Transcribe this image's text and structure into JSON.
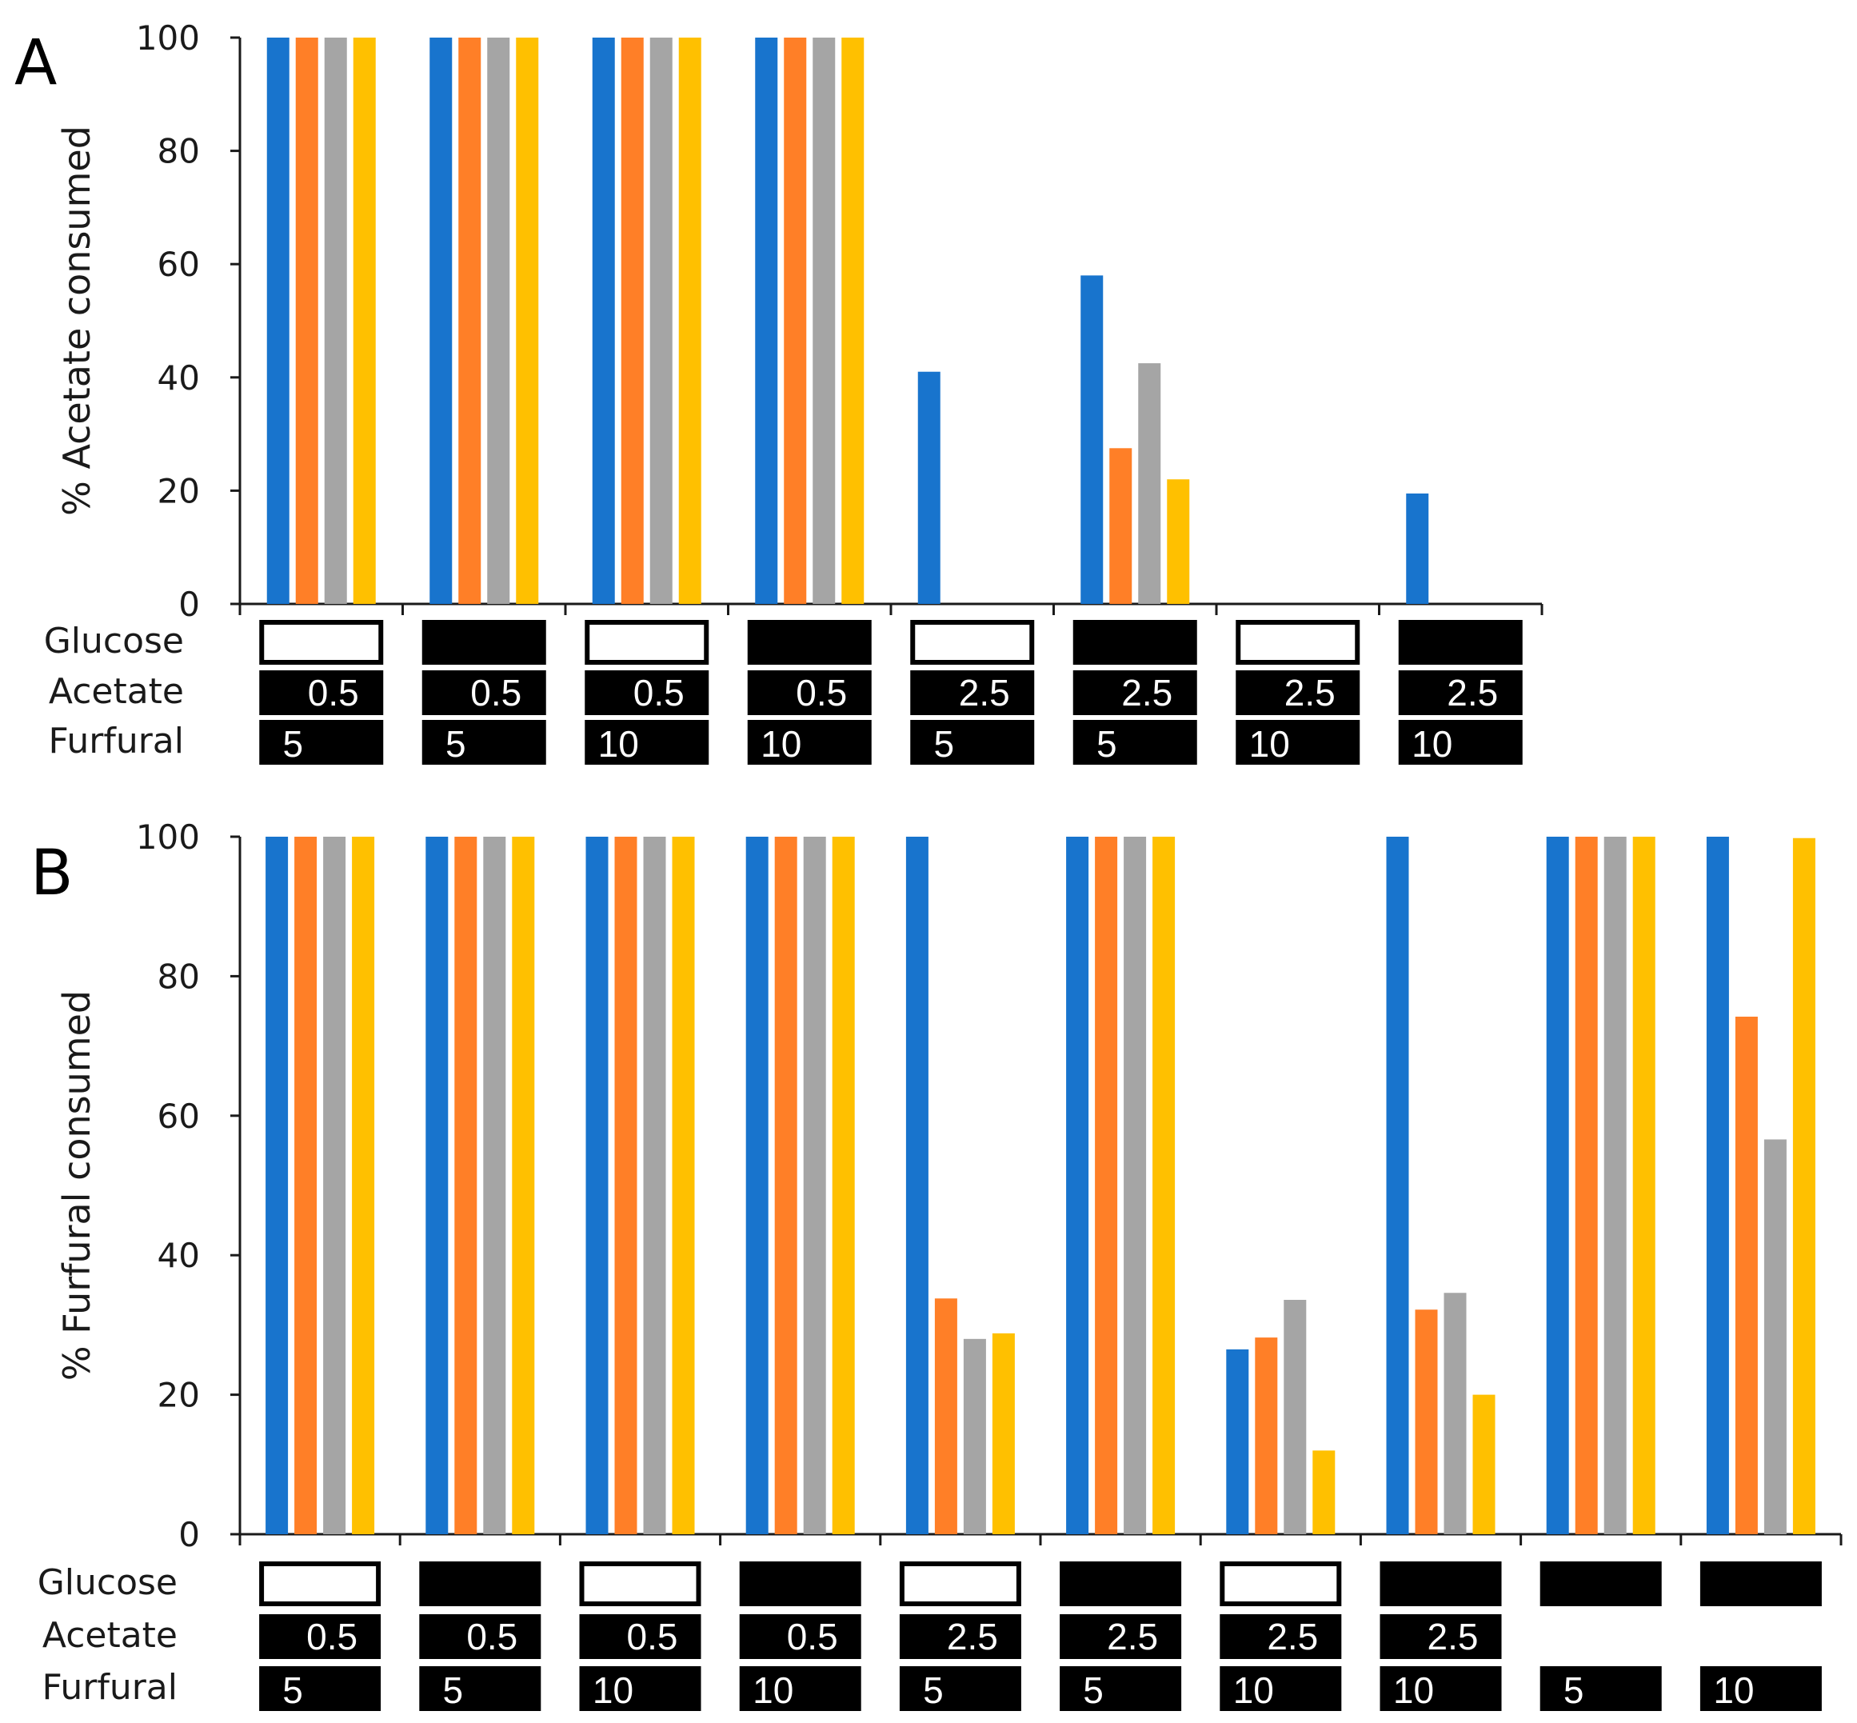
{
  "chart_data": [
    {
      "panel": "A",
      "type": "bar",
      "ylabel": "% Acetate consumed",
      "ylim": [
        0,
        100
      ],
      "yticks": [
        0,
        20,
        40,
        60,
        80,
        100
      ],
      "row_labels": [
        "Glucose",
        "Acetate",
        "Furfural"
      ],
      "groups": [
        {
          "glucose": "absent",
          "acetate": "0.5",
          "furfural": "5"
        },
        {
          "glucose": "present",
          "acetate": "0.5",
          "furfural": "5"
        },
        {
          "glucose": "absent",
          "acetate": "0.5",
          "furfural": "10"
        },
        {
          "glucose": "present",
          "acetate": "0.5",
          "furfural": "10"
        },
        {
          "glucose": "absent",
          "acetate": "2.5",
          "furfural": "5"
        },
        {
          "glucose": "present",
          "acetate": "2.5",
          "furfural": "5"
        },
        {
          "glucose": "absent",
          "acetate": "2.5",
          "furfural": "10"
        },
        {
          "glucose": "present",
          "acetate": "2.5",
          "furfural": "10"
        }
      ],
      "series": [
        {
          "color": "#1874CD",
          "values": [
            100,
            100,
            100,
            100,
            41,
            58,
            0,
            19.5
          ]
        },
        {
          "color": "#FF7F27",
          "values": [
            100,
            100,
            100,
            100,
            0,
            27.5,
            0,
            0
          ]
        },
        {
          "color": "#A5A5A5",
          "values": [
            100,
            100,
            100,
            100,
            0,
            42.5,
            0,
            0
          ]
        },
        {
          "color": "#FFC000",
          "values": [
            100,
            100,
            100,
            100,
            0,
            22,
            0,
            0
          ]
        }
      ]
    },
    {
      "panel": "B",
      "type": "bar",
      "ylabel": "% Furfural consumed",
      "ylim": [
        0,
        100
      ],
      "yticks": [
        0,
        20,
        40,
        60,
        80,
        100
      ],
      "row_labels": [
        "Glucose",
        "Acetate",
        "Furfural"
      ],
      "groups": [
        {
          "glucose": "absent",
          "acetate": "0.5",
          "furfural": "5"
        },
        {
          "glucose": "present",
          "acetate": "0.5",
          "furfural": "5"
        },
        {
          "glucose": "absent",
          "acetate": "0.5",
          "furfural": "10"
        },
        {
          "glucose": "present",
          "acetate": "0.5",
          "furfural": "10"
        },
        {
          "glucose": "absent",
          "acetate": "2.5",
          "furfural": "5"
        },
        {
          "glucose": "present",
          "acetate": "2.5",
          "furfural": "5"
        },
        {
          "glucose": "absent",
          "acetate": "2.5",
          "furfural": "10"
        },
        {
          "glucose": "present",
          "acetate": "2.5",
          "furfural": "10"
        },
        {
          "glucose": "present",
          "acetate": "",
          "furfural": "5"
        },
        {
          "glucose": "present",
          "acetate": "",
          "furfural": "10"
        }
      ],
      "series": [
        {
          "color": "#1874CD",
          "values": [
            100,
            100,
            100,
            100,
            100,
            100,
            26.5,
            100,
            100,
            100
          ]
        },
        {
          "color": "#FF7F27",
          "values": [
            100,
            100,
            100,
            100,
            33.8,
            100,
            28.2,
            32.2,
            100,
            74.2
          ]
        },
        {
          "color": "#A5A5A5",
          "values": [
            100,
            100,
            100,
            100,
            28,
            100,
            33.6,
            34.6,
            100,
            56.6
          ]
        },
        {
          "color": "#FFC000",
          "values": [
            100,
            100,
            100,
            100,
            28.8,
            100,
            12,
            20,
            100,
            99.8
          ]
        }
      ]
    }
  ]
}
